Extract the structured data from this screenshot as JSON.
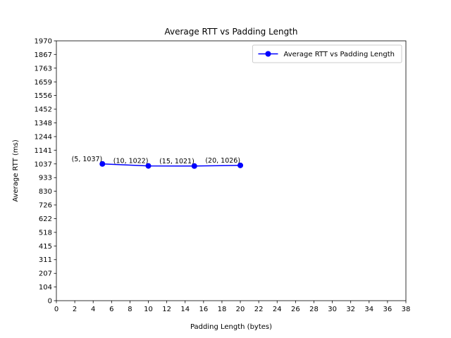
{
  "chart_data": {
    "type": "line",
    "title": "Average RTT vs Padding Length",
    "xlabel": "Padding Length (bytes)",
    "ylabel": "Average RTT (ms)",
    "xlim": [
      0,
      38
    ],
    "ylim": [
      0,
      1970
    ],
    "x_ticks": [
      0,
      2,
      4,
      6,
      8,
      10,
      12,
      14,
      16,
      18,
      20,
      22,
      24,
      26,
      28,
      30,
      32,
      34,
      36,
      38
    ],
    "y_ticks": [
      0,
      104,
      207,
      311,
      415,
      518,
      622,
      726,
      830,
      933,
      1037,
      1141,
      1244,
      1348,
      1452,
      1556,
      1659,
      1763,
      1867,
      1970
    ],
    "grid": false,
    "legend_position": "top-right",
    "series": [
      {
        "name": "Average RTT vs Padding Length",
        "color": "#0000ff",
        "marker": "circle",
        "x": [
          5,
          10,
          15,
          20
        ],
        "y": [
          1037,
          1022,
          1021,
          1026
        ],
        "point_labels": [
          "(5, 1037)",
          "(10, 1022)",
          "(15, 1021)",
          "(20, 1026)"
        ]
      }
    ]
  }
}
